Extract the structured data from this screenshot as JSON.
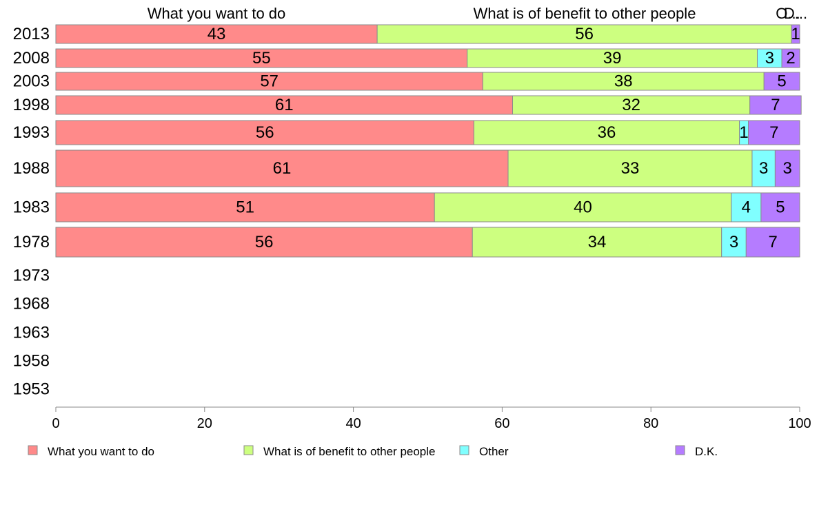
{
  "chart_data": {
    "type": "bar",
    "orientation": "horizontal",
    "stacked": true,
    "title": "",
    "xlabel": "",
    "ylabel": "",
    "xlim": [
      0,
      100
    ],
    "xticks": [
      0,
      20,
      40,
      60,
      80,
      100
    ],
    "categories": [
      "2013",
      "2008",
      "2003",
      "1998",
      "1993",
      "1988",
      "1983",
      "1978",
      "1973",
      "1968",
      "1963",
      "1958",
      "1953"
    ],
    "series": [
      {
        "name": "What you want to do",
        "color": "#ff8a8a",
        "values": [
          43.2,
          55.3,
          57.4,
          61.4,
          56.2,
          60.8,
          50.9,
          56.0,
          null,
          null,
          null,
          null,
          null
        ],
        "labels": [
          "43",
          "55",
          "57",
          "61",
          "56",
          "61",
          "51",
          "56",
          "",
          "",
          "",
          "",
          ""
        ]
      },
      {
        "name": "What is of benefit to other people",
        "color": "#cdff80",
        "values": [
          55.7,
          39.0,
          37.8,
          31.9,
          35.7,
          32.8,
          39.9,
          33.5,
          null,
          null,
          null,
          null,
          null
        ],
        "labels": [
          "56",
          "39",
          "38",
          "32",
          "36",
          "33",
          "40",
          "34",
          "",
          "",
          "",
          "",
          ""
        ]
      },
      {
        "name": "Other",
        "color": "#80ffff",
        "values": [
          0,
          3.3,
          0,
          0,
          1.2,
          3.1,
          4.0,
          3.3,
          null,
          null,
          null,
          null,
          null
        ],
        "labels": [
          "",
          "3",
          "",
          "",
          "1",
          "3",
          "4",
          "3",
          "",
          "",
          "",
          "",
          ""
        ]
      },
      {
        "name": "D.K.",
        "color": "#b57cff",
        "values": [
          1.1,
          2.4,
          4.8,
          6.9,
          6.9,
          3.3,
          5.2,
          7.2,
          null,
          null,
          null,
          null,
          null
        ],
        "labels": [
          "1",
          "2",
          "5",
          "7",
          "7",
          "3",
          "5",
          "7",
          "",
          "",
          "",
          "",
          ""
        ]
      }
    ],
    "top_labels": [
      "What you want to do",
      "What is of benefit to other people",
      "O...",
      "D..."
    ],
    "legend": {
      "placement": "bottom"
    }
  }
}
